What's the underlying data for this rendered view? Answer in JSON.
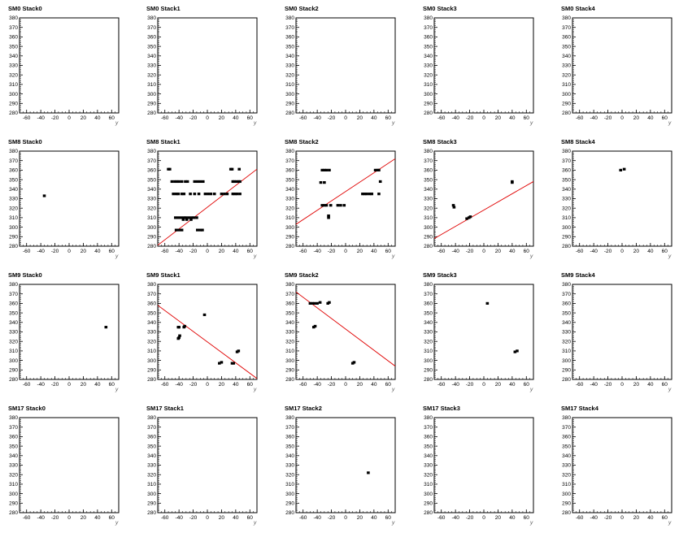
{
  "chart_data": [
    {
      "type": "scatter",
      "title": "SM0 Stack0",
      "xlabel": "y",
      "xlim": [
        -70,
        70
      ],
      "ylim": [
        280,
        380
      ],
      "xticks": [
        -60,
        -40,
        -20,
        0,
        20,
        40,
        60
      ],
      "yticks": [
        280,
        290,
        300,
        310,
        320,
        330,
        340,
        350,
        360,
        370,
        380
      ],
      "points": [],
      "fit_line": null
    },
    {
      "type": "scatter",
      "title": "SM0 Stack1",
      "xlabel": "y",
      "xlim": [
        -70,
        70
      ],
      "ylim": [
        280,
        380
      ],
      "xticks": [
        -60,
        -40,
        -20,
        0,
        20,
        40,
        60
      ],
      "yticks": [
        280,
        290,
        300,
        310,
        320,
        330,
        340,
        350,
        360,
        370,
        380
      ],
      "points": [],
      "fit_line": null
    },
    {
      "type": "scatter",
      "title": "SM0 Stack2",
      "xlabel": "y",
      "xlim": [
        -70,
        70
      ],
      "ylim": [
        280,
        380
      ],
      "xticks": [
        -60,
        -40,
        -20,
        0,
        20,
        40,
        60
      ],
      "yticks": [
        280,
        290,
        300,
        310,
        320,
        330,
        340,
        350,
        360,
        370,
        380
      ],
      "points": [],
      "fit_line": null
    },
    {
      "type": "scatter",
      "title": "SM0 Stack3",
      "xlabel": "y",
      "xlim": [
        -70,
        70
      ],
      "ylim": [
        280,
        380
      ],
      "xticks": [
        -60,
        -40,
        -20,
        0,
        20,
        40,
        60
      ],
      "yticks": [
        280,
        290,
        300,
        310,
        320,
        330,
        340,
        350,
        360,
        370,
        380
      ],
      "points": [],
      "fit_line": null
    },
    {
      "type": "scatter",
      "title": "SM0 Stack4",
      "xlabel": "y",
      "xlim": [
        -70,
        70
      ],
      "ylim": [
        280,
        380
      ],
      "xticks": [
        -60,
        -40,
        -20,
        0,
        20,
        40,
        60
      ],
      "yticks": [
        280,
        290,
        300,
        310,
        320,
        330,
        340,
        350,
        360,
        370,
        380
      ],
      "points": [],
      "fit_line": null
    },
    {
      "type": "scatter",
      "title": "SM8 Stack0",
      "xlabel": "y",
      "xlim": [
        -70,
        70
      ],
      "ylim": [
        280,
        380
      ],
      "xticks": [
        -60,
        -40,
        -20,
        0,
        20,
        40,
        60
      ],
      "yticks": [
        280,
        290,
        300,
        310,
        320,
        330,
        340,
        350,
        360,
        370,
        380
      ],
      "points": [
        [
          -35,
          333
        ]
      ],
      "fit_line": null
    },
    {
      "type": "scatter",
      "title": "SM8 Stack1",
      "xlabel": "y",
      "xlim": [
        -70,
        70
      ],
      "ylim": [
        280,
        380
      ],
      "xticks": [
        -60,
        -40,
        -20,
        0,
        20,
        40,
        60
      ],
      "yticks": [
        280,
        290,
        300,
        310,
        320,
        330,
        340,
        350,
        360,
        370,
        380
      ],
      "points": [
        [
          -55,
          361
        ],
        [
          -53,
          361
        ],
        [
          -50,
          348
        ],
        [
          -46,
          348
        ],
        [
          -43,
          348
        ],
        [
          -40,
          348
        ],
        [
          -36,
          348
        ],
        [
          -31,
          348
        ],
        [
          -28,
          348
        ],
        [
          -18,
          348
        ],
        [
          -14,
          348
        ],
        [
          -10,
          348
        ],
        [
          -6,
          348
        ],
        [
          36,
          348
        ],
        [
          38,
          348
        ],
        [
          41,
          348
        ],
        [
          44,
          348
        ],
        [
          46,
          348
        ],
        [
          -48,
          335
        ],
        [
          -44,
          335
        ],
        [
          -41,
          335
        ],
        [
          -36,
          335
        ],
        [
          -33,
          335
        ],
        [
          -24,
          335
        ],
        [
          -18,
          335
        ],
        [
          -12,
          335
        ],
        [
          -3,
          335
        ],
        [
          1,
          335
        ],
        [
          5,
          335
        ],
        [
          10,
          335
        ],
        [
          20,
          335
        ],
        [
          24,
          335
        ],
        [
          28,
          335
        ],
        [
          36,
          335
        ],
        [
          39,
          335
        ],
        [
          42,
          335
        ],
        [
          46,
          335
        ],
        [
          33,
          361
        ],
        [
          35,
          361
        ],
        [
          45,
          361
        ],
        [
          -45,
          310
        ],
        [
          -41,
          310
        ],
        [
          -37,
          310
        ],
        [
          -33,
          310
        ],
        [
          -30,
          310
        ],
        [
          -26,
          310
        ],
        [
          -22,
          310
        ],
        [
          -19,
          310
        ],
        [
          -15,
          310
        ],
        [
          -34,
          308
        ],
        [
          -29,
          308
        ],
        [
          -23,
          308
        ],
        [
          -44,
          297
        ],
        [
          -40,
          297
        ],
        [
          -36,
          297
        ],
        [
          -14,
          297
        ],
        [
          -10,
          297
        ],
        [
          -7,
          297
        ]
      ],
      "fit_line": [
        [
          -70,
          281
        ],
        [
          70,
          361
        ]
      ]
    },
    {
      "type": "scatter",
      "title": "SM8 Stack2",
      "xlabel": "y",
      "xlim": [
        -70,
        70
      ],
      "ylim": [
        280,
        380
      ],
      "xticks": [
        -60,
        -40,
        -20,
        0,
        20,
        40,
        60
      ],
      "yticks": [
        280,
        290,
        300,
        310,
        320,
        330,
        340,
        350,
        360,
        370,
        380
      ],
      "points": [
        [
          -33,
          360
        ],
        [
          -30,
          360
        ],
        [
          -27,
          360
        ],
        [
          -23,
          360
        ],
        [
          -30,
          347
        ],
        [
          -35,
          347
        ],
        [
          -33,
          323
        ],
        [
          -30,
          323
        ],
        [
          -27,
          323
        ],
        [
          -21,
          323
        ],
        [
          -11,
          323
        ],
        [
          -7,
          323
        ],
        [
          -2,
          323
        ],
        [
          -24,
          310
        ],
        [
          -24,
          312
        ],
        [
          24,
          335
        ],
        [
          27,
          335
        ],
        [
          30,
          335
        ],
        [
          34,
          335
        ],
        [
          37,
          335
        ],
        [
          47,
          335
        ],
        [
          42,
          360
        ],
        [
          45,
          360
        ],
        [
          47,
          360
        ],
        [
          49,
          348
        ]
      ],
      "fit_line": [
        [
          -70,
          303
        ],
        [
          70,
          372
        ]
      ]
    },
    {
      "type": "scatter",
      "title": "SM8 Stack3",
      "xlabel": "y",
      "xlim": [
        -70,
        70
      ],
      "ylim": [
        280,
        380
      ],
      "xticks": [
        -60,
        -40,
        -20,
        0,
        20,
        40,
        60
      ],
      "yticks": [
        280,
        290,
        300,
        310,
        320,
        330,
        340,
        350,
        360,
        370,
        380
      ],
      "points": [
        [
          -43,
          323
        ],
        [
          -42,
          321
        ],
        [
          -24,
          309
        ],
        [
          -21,
          310
        ],
        [
          -19,
          311
        ],
        [
          40,
          348
        ],
        [
          40,
          347
        ]
      ],
      "fit_line": [
        [
          -70,
          288
        ],
        [
          70,
          348
        ]
      ]
    },
    {
      "type": "scatter",
      "title": "SM8 Stack4",
      "xlabel": "y",
      "xlim": [
        -70,
        70
      ],
      "ylim": [
        280,
        380
      ],
      "xticks": [
        -60,
        -40,
        -20,
        0,
        20,
        40,
        60
      ],
      "yticks": [
        280,
        290,
        300,
        310,
        320,
        330,
        340,
        350,
        360,
        370,
        380
      ],
      "points": [
        [
          -2,
          360
        ],
        [
          3,
          361
        ]
      ],
      "fit_line": null
    },
    {
      "type": "scatter",
      "title": "SM9 Stack0",
      "xlabel": "y",
      "xlim": [
        -70,
        70
      ],
      "ylim": [
        280,
        380
      ],
      "xticks": [
        -60,
        -40,
        -20,
        0,
        20,
        40,
        60
      ],
      "yticks": [
        280,
        290,
        300,
        310,
        320,
        330,
        340,
        350,
        360,
        370,
        380
      ],
      "points": [
        [
          52,
          335
        ]
      ],
      "fit_line": null
    },
    {
      "type": "scatter",
      "title": "SM9 Stack1",
      "xlabel": "y",
      "xlim": [
        -70,
        70
      ],
      "ylim": [
        280,
        380
      ],
      "xticks": [
        -60,
        -40,
        -20,
        0,
        20,
        40,
        60
      ],
      "yticks": [
        280,
        290,
        300,
        310,
        320,
        330,
        340,
        350,
        360,
        370,
        380
      ],
      "points": [
        [
          -41,
          335
        ],
        [
          -40,
          335
        ],
        [
          -33,
          335
        ],
        [
          -32,
          336
        ],
        [
          -41,
          323
        ],
        [
          -40,
          324
        ],
        [
          -39,
          326
        ],
        [
          -4,
          348
        ],
        [
          17,
          297
        ],
        [
          20,
          298
        ],
        [
          35,
          297
        ],
        [
          37,
          297
        ],
        [
          42,
          309
        ],
        [
          44,
          310
        ]
      ],
      "fit_line": [
        [
          -70,
          358
        ],
        [
          70,
          281
        ]
      ]
    },
    {
      "type": "scatter",
      "title": "SM9 Stack2",
      "xlabel": "y",
      "xlim": [
        -70,
        70
      ],
      "ylim": [
        280,
        380
      ],
      "xticks": [
        -60,
        -40,
        -20,
        0,
        20,
        40,
        60
      ],
      "yticks": [
        280,
        290,
        300,
        310,
        320,
        330,
        340,
        350,
        360,
        370,
        380
      ],
      "points": [
        [
          -50,
          360
        ],
        [
          -47,
          360
        ],
        [
          -44,
          360
        ],
        [
          -40,
          360
        ],
        [
          -36,
          361
        ],
        [
          -25,
          360
        ],
        [
          -23,
          361
        ],
        [
          -45,
          335
        ],
        [
          -43,
          336
        ],
        [
          10,
          297
        ],
        [
          12,
          298
        ]
      ],
      "fit_line": [
        [
          -70,
          372
        ],
        [
          70,
          294
        ]
      ]
    },
    {
      "type": "scatter",
      "title": "SM9 Stack3",
      "xlabel": "y",
      "xlim": [
        -70,
        70
      ],
      "ylim": [
        280,
        380
      ],
      "xticks": [
        -60,
        -40,
        -20,
        0,
        20,
        40,
        60
      ],
      "yticks": [
        280,
        290,
        300,
        310,
        320,
        330,
        340,
        350,
        360,
        370,
        380
      ],
      "points": [
        [
          5,
          360
        ],
        [
          44,
          309
        ],
        [
          47,
          310
        ]
      ],
      "fit_line": null
    },
    {
      "type": "scatter",
      "title": "SM9 Stack4",
      "xlabel": "y",
      "xlim": [
        -70,
        70
      ],
      "ylim": [
        280,
        380
      ],
      "xticks": [
        -60,
        -40,
        -20,
        0,
        20,
        40,
        60
      ],
      "yticks": [
        280,
        290,
        300,
        310,
        320,
        330,
        340,
        350,
        360,
        370,
        380
      ],
      "points": [],
      "fit_line": null
    },
    {
      "type": "scatter",
      "title": "SM17 Stack0",
      "xlabel": "y",
      "xlim": [
        -70,
        70
      ],
      "ylim": [
        280,
        380
      ],
      "xticks": [
        -60,
        -40,
        -20,
        0,
        20,
        40,
        60
      ],
      "yticks": [
        280,
        290,
        300,
        310,
        320,
        330,
        340,
        350,
        360,
        370,
        380
      ],
      "points": [],
      "fit_line": null
    },
    {
      "type": "scatter",
      "title": "SM17 Stack1",
      "xlabel": "y",
      "xlim": [
        -70,
        70
      ],
      "ylim": [
        280,
        380
      ],
      "xticks": [
        -60,
        -40,
        -20,
        0,
        20,
        40,
        60
      ],
      "yticks": [
        280,
        290,
        300,
        310,
        320,
        330,
        340,
        350,
        360,
        370,
        380
      ],
      "points": [],
      "fit_line": null
    },
    {
      "type": "scatter",
      "title": "SM17 Stack2",
      "xlabel": "y",
      "xlim": [
        -70,
        70
      ],
      "ylim": [
        280,
        380
      ],
      "xticks": [
        -60,
        -40,
        -20,
        0,
        20,
        40,
        60
      ],
      "yticks": [
        280,
        290,
        300,
        310,
        320,
        330,
        340,
        350,
        360,
        370,
        380
      ],
      "points": [
        [
          32,
          322
        ]
      ],
      "fit_line": null
    },
    {
      "type": "scatter",
      "title": "SM17 Stack3",
      "xlabel": "y",
      "xlim": [
        -70,
        70
      ],
      "ylim": [
        280,
        380
      ],
      "xticks": [
        -60,
        -40,
        -20,
        0,
        20,
        40,
        60
      ],
      "yticks": [
        280,
        290,
        300,
        310,
        320,
        330,
        340,
        350,
        360,
        370,
        380
      ],
      "points": [],
      "fit_line": null
    },
    {
      "type": "scatter",
      "title": "SM17 Stack4",
      "xlabel": "y",
      "xlim": [
        -70,
        70
      ],
      "ylim": [
        280,
        380
      ],
      "xticks": [
        -60,
        -40,
        -20,
        0,
        20,
        40,
        60
      ],
      "yticks": [
        280,
        290,
        300,
        310,
        320,
        330,
        340,
        350,
        360,
        370,
        380
      ],
      "points": [],
      "fit_line": null
    }
  ],
  "colors": {
    "fit_line": "#e00000",
    "points": "#000000",
    "frame": "#000000"
  }
}
